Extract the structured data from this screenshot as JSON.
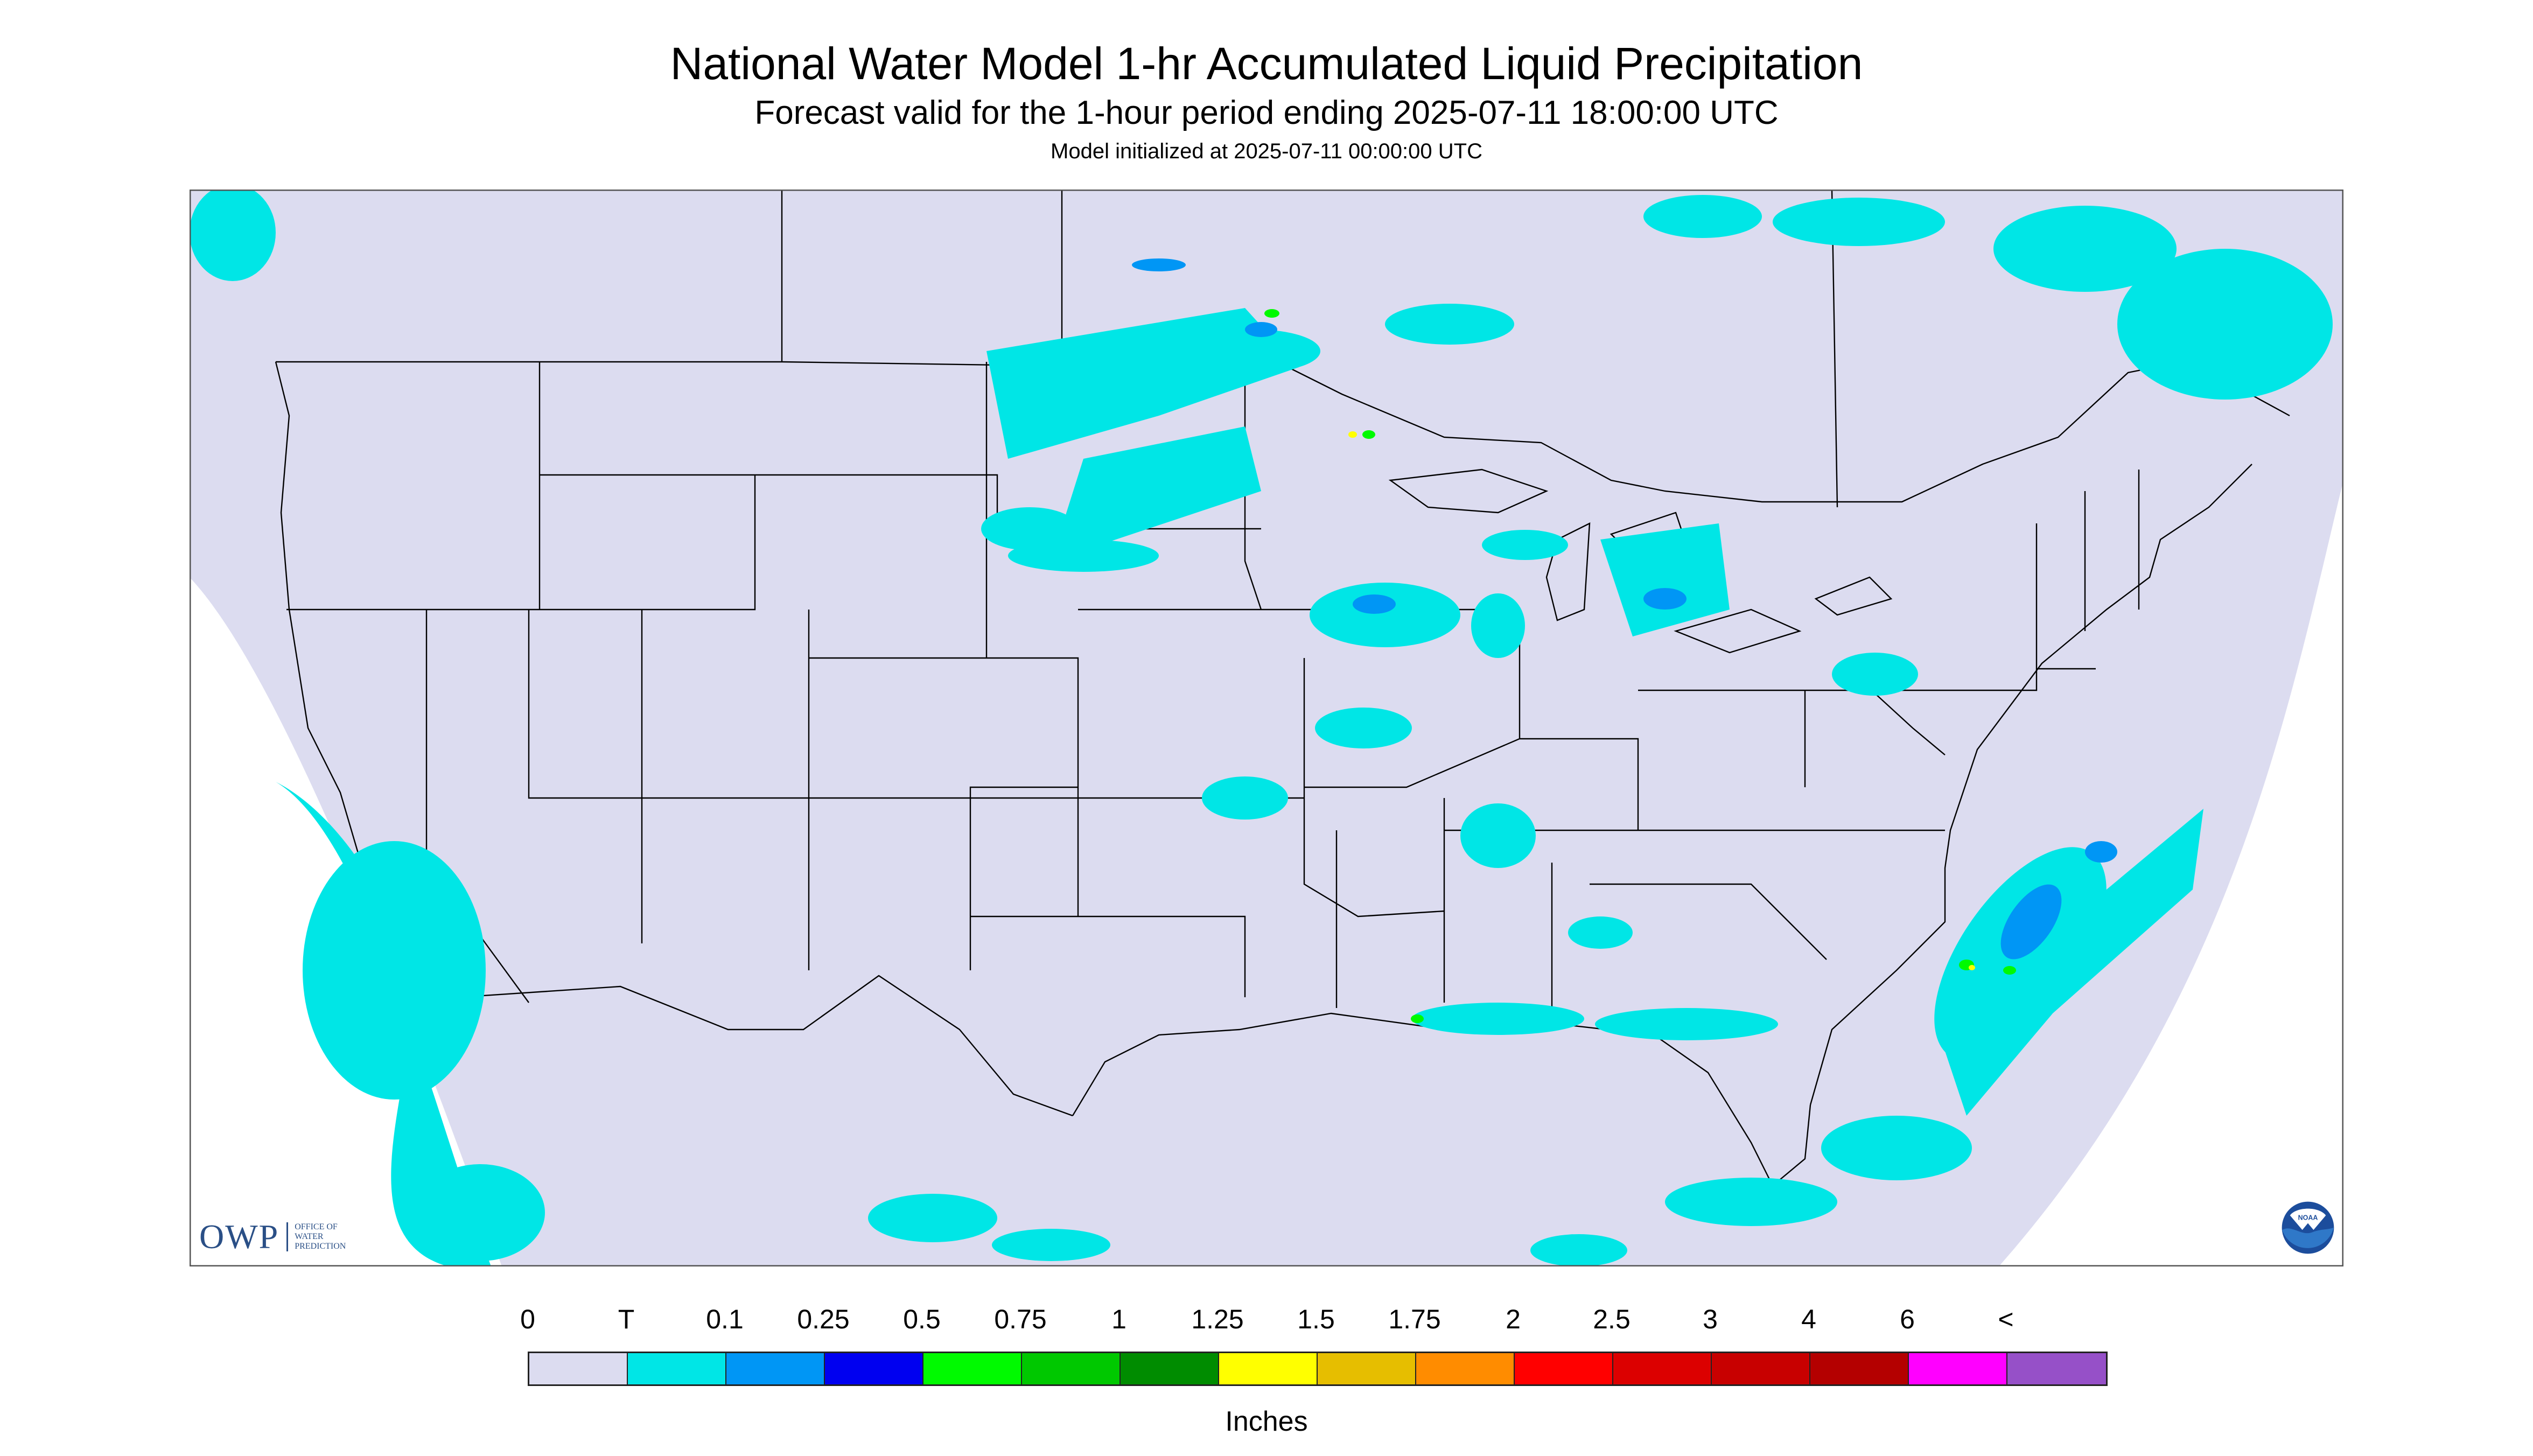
{
  "header": {
    "title": "National Water Model 1-hr Accumulated Liquid Precipitation",
    "subtitle": "Forecast valid for the 1-hour period ending 2025-07-11 18:00:00 UTC",
    "init": "Model initialized at 2025-07-11 00:00:00 UTC"
  },
  "legend": {
    "units": "Inches",
    "ticks": [
      "0",
      "T",
      "0.1",
      "0.25",
      "0.5",
      "0.75",
      "1",
      "1.25",
      "1.5",
      "1.75",
      "2",
      "2.5",
      "3",
      "4",
      "6",
      "<"
    ],
    "colors": [
      "#dcdcf0",
      "#00e6e6",
      "#0096f5",
      "#0000f0",
      "#00fa00",
      "#00c800",
      "#008c00",
      "#ffff00",
      "#e6be00",
      "#ff8c00",
      "#ff0000",
      "#dc0000",
      "#c80000",
      "#b40000",
      "#ff00ff",
      "#9650c8"
    ]
  },
  "map": {
    "background_color": "#dcdcf0",
    "outside_color": "#ffffff",
    "border_color": "#000000",
    "rain_colors": {
      "trace": "#00e6e6",
      "light": "#0096f5",
      "moderate": "#0000f0",
      "heavy": "#00fa00",
      "very_heavy": "#ffff00"
    }
  },
  "logos": {
    "owp_mark": "OWP",
    "owp_text": [
      "OFFICE OF",
      "WATER",
      "PREDICTION"
    ],
    "noaa_text": "NOAA"
  }
}
